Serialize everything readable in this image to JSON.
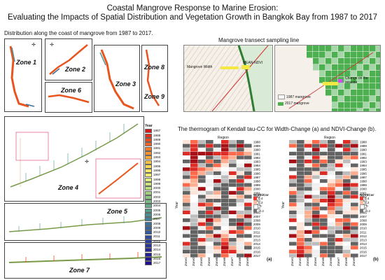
{
  "header": {
    "title_line1": "Coastal Mangrove Response to Marine Erosion:",
    "title_line2": "Evaluating the Impacts of Spatial Distribution and Vegetation Growth in Bangkok Bay from 1987 to 2017"
  },
  "left_caption": "Distribution along the coast of mangrove from 1987 to 2017.",
  "zones": [
    "Zone 1",
    "Zone 2",
    "Zone 3",
    "Zone 4",
    "Zone 5",
    "Zone 6",
    "Zone 7",
    "Zone 8",
    "Zone 9"
  ],
  "transect": {
    "caption": "Mangrove transect sampling line",
    "label_width": "Mangrove Width",
    "label_mean": "MEAN-NDVI",
    "label_change": "Change on the seaside",
    "legend_1987": "1987 mangrove",
    "legend_2017": "2017 mangrove"
  },
  "legend": {
    "title": "Year",
    "years": [
      "1987",
      "1988",
      "1989",
      "1990",
      "1991",
      "1992",
      "1993",
      "1994",
      "1995",
      "1996",
      "1997",
      "1998",
      "1999",
      "2000",
      "2001",
      "2002",
      "2003",
      "2004",
      "2005",
      "2006",
      "2007",
      "2008",
      "2009",
      "2010",
      "2011",
      "2012",
      "2013",
      "2014",
      "2015",
      "2016",
      "2017"
    ],
    "colors": [
      "#d7191c",
      "#e0301e",
      "#e84a22",
      "#ef6226",
      "#f47a2b",
      "#f79230",
      "#f9aa3a",
      "#fbc246",
      "#fcd853",
      "#fde869",
      "#f4ee77",
      "#e3ed7f",
      "#cfe67f",
      "#b9dc7e",
      "#a2d17f",
      "#8cc582",
      "#78b986",
      "#66ab8a",
      "#579d8e",
      "#4c8f93",
      "#438197",
      "#3d739a",
      "#38659c",
      "#34589d",
      "#304b9d",
      "#2c3f9b",
      "#293499",
      "#262996",
      "#232093",
      "#20188f",
      "#1e108b"
    ]
  },
  "heatmap": {
    "caption": "The thermogram of Kendall tau-CC  for Width-Change (a) and NDVI-Change (b).",
    "region_label": "Region",
    "year_label": "Year",
    "years": [
      "1988",
      "1989",
      "1990",
      "1991",
      "1992",
      "1993",
      "1994",
      "1995",
      "1996",
      "1997",
      "1998",
      "1999",
      "2000",
      "2001",
      "2002",
      "2003",
      "2004",
      "2005",
      "2006",
      "2007",
      "2008",
      "2009",
      "2010",
      "2011",
      "2012",
      "2013",
      "2014",
      "2015",
      "2016",
      "2017"
    ],
    "zones": [
      "Zone1",
      "Zone2",
      "Zone3",
      "Zone4",
      "Zone5",
      "Zone6",
      "Zone7",
      "Zone8",
      "Zone9"
    ],
    "panel_a": {
      "tag": "(a)",
      "legend_title": "Width/Cor",
      "ticks": [
        "0.4",
        "0.2",
        "0",
        "-0.2"
      ]
    },
    "panel_b": {
      "tag": "(b)",
      "legend_title": "NDVI/Cor",
      "ticks": [
        "0.4",
        "0.2",
        "0",
        "-0.2"
      ]
    }
  }
}
